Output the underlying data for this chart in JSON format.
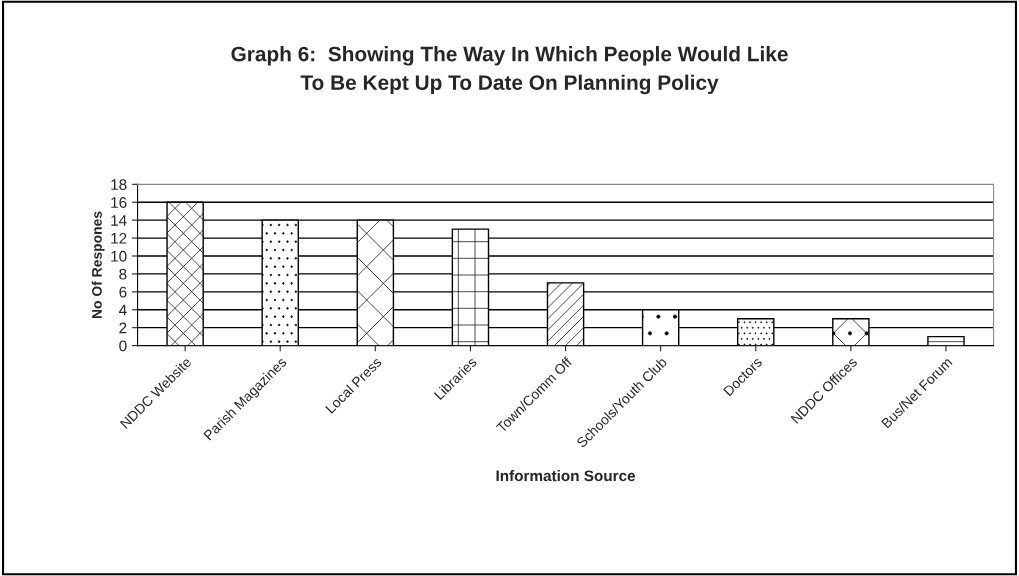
{
  "chart_data": {
    "type": "bar",
    "title": "Graph 6:  Showing The Way In Which People Would Like\nTo Be Kept Up To Date On Planning Policy",
    "xlabel": "Information Source",
    "ylabel": "No Of Respones",
    "categories": [
      "NDDC Website",
      "Parish Magazines",
      "Local Press",
      "Libraries",
      "Town/Comm Off",
      "Schools/Youth Club",
      "Doctors",
      "NDDC Offices",
      "Bus/Net Forum"
    ],
    "values": [
      16,
      14,
      14,
      13,
      7,
      4,
      3,
      3,
      1
    ],
    "ylim": [
      0,
      18
    ],
    "yticks": [
      0,
      2,
      4,
      6,
      8,
      10,
      12,
      14,
      16,
      18
    ],
    "grid": "y"
  }
}
